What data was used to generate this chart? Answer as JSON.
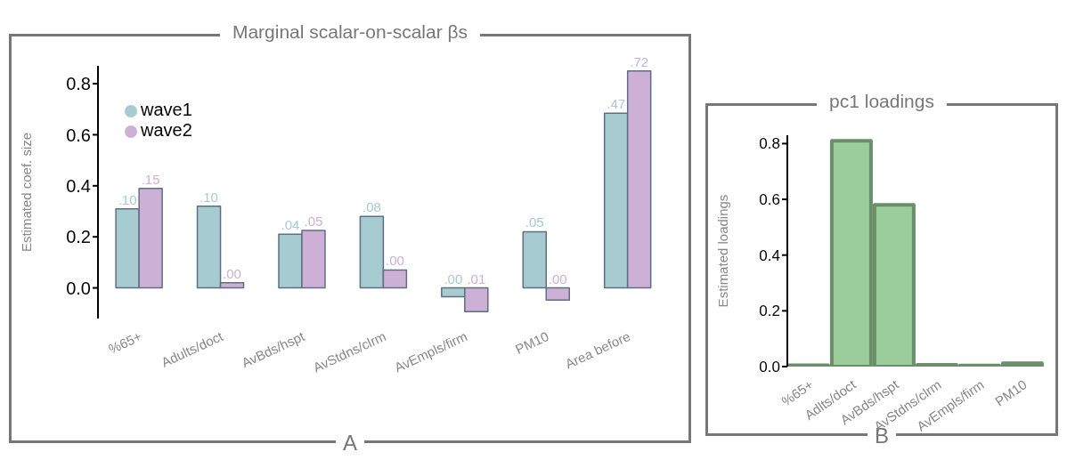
{
  "chart_data": [
    {
      "type": "bar",
      "title": "Marginal scalar-on-scalar βs",
      "ylabel": "Estimated coef. size",
      "annotations": [
        "A",
        {
          "text": ".10",
          "x": "%65+",
          "y": 0.31
        },
        {
          "text": ".15",
          "x": "%65+",
          "y": 0.39
        },
        {
          "text": ".10",
          "x": "Adults/doct",
          "y": 0.32
        },
        {
          "text": ".00",
          "x": "Adults/doct",
          "y": 0.02
        },
        {
          "text": ".04",
          "x": "AvBds/hspt",
          "y": 0.21
        },
        {
          "text": ".05",
          "x": "AvBds/hspt",
          "y": 0.225
        },
        {
          "text": ".08",
          "x": "AvStdns/clrm",
          "y": 0.28
        },
        {
          "text": ".00",
          "x": "AvStdns/clrm",
          "y": 0.07
        },
        {
          "text": ".00",
          "x": "AvEmpls/firm",
          "y": -0.035
        },
        {
          "text": ".01",
          "x": "AvEmpls/firm",
          "y": -0.093
        },
        {
          "text": ".05",
          "x": "PM10",
          "y": 0.22
        },
        {
          "text": ".00",
          "x": "PM10",
          "y": -0.048
        },
        {
          "text": ".47",
          "x": "Area before",
          "y": 0.684
        },
        {
          "text": ".72",
          "x": "Area before",
          "y": 0.85
        }
      ],
      "categories": [
        "%65+",
        "Adults/doct",
        "AvBds/hspt",
        "AvStdns/clrm",
        "AvEmpls/firm",
        "PM10",
        "Area before"
      ],
      "series": [
        {
          "name": "wave1",
          "color": "#a6cbd1",
          "values": [
            0.31,
            0.32,
            0.21,
            0.28,
            -0.035,
            0.22,
            0.684
          ]
        },
        {
          "name": "wave2",
          "color": "#cdb0d5",
          "values": [
            0.39,
            0.02,
            0.225,
            0.07,
            -0.093,
            -0.048,
            0.85
          ]
        }
      ],
      "ylim": [
        -0.12,
        0.87
      ],
      "yticks": [
        {
          "value": 0,
          "label": "0.0"
        },
        0.2,
        0.4,
        0.6,
        0.8
      ],
      "legend": "top left"
    },
    {
      "type": "bar",
      "title": "pc1 loadings",
      "ylabel": "Estimated loadings",
      "annotations": [
        "B"
      ],
      "categories": [
        "%65+",
        "Adlts/doct",
        "AvBds/hspt",
        "AvStdns/clrm",
        "AvEmpls/firm",
        "PM10"
      ],
      "values": [
        0.005,
        0.81,
        0.58,
        0.006,
        0.004,
        0.012
      ],
      "color": "#9bcd9a",
      "ylim": [
        0,
        0.83
      ],
      "yticks": [
        {
          "value": 0,
          "label": "0.0"
        },
        0.2,
        0.4,
        0.6,
        0.8
      ]
    }
  ]
}
